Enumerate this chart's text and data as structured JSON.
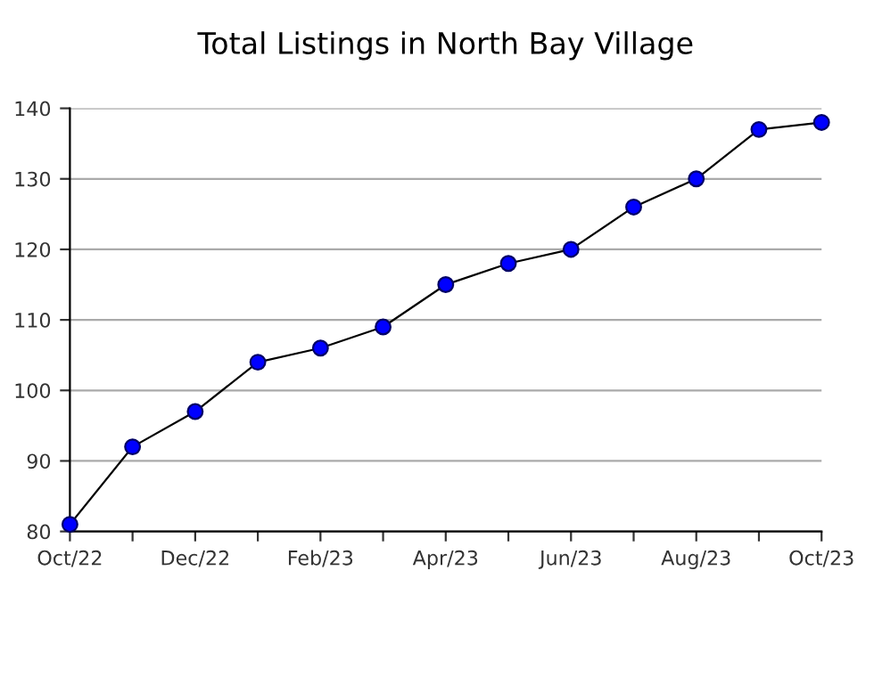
{
  "chart_data": {
    "type": "line",
    "title": "Total Listings in North Bay Village",
    "categories": [
      "Oct/22",
      null,
      "Dec/22",
      null,
      "Feb/23",
      null,
      "Apr/23",
      null,
      "Jun/23",
      null,
      "Aug/23",
      null,
      "Oct/23"
    ],
    "series": [
      {
        "color": "#0000ff",
        "values": [
          81,
          92,
          97,
          104,
          106,
          109,
          115,
          118,
          120,
          126,
          130,
          137,
          138
        ]
      }
    ],
    "ylim": [
      80,
      140
    ],
    "yticks": [
      80,
      90,
      100,
      110,
      120,
      130,
      140
    ],
    "grid": "y",
    "marker": "circle",
    "line_style": "solid"
  }
}
